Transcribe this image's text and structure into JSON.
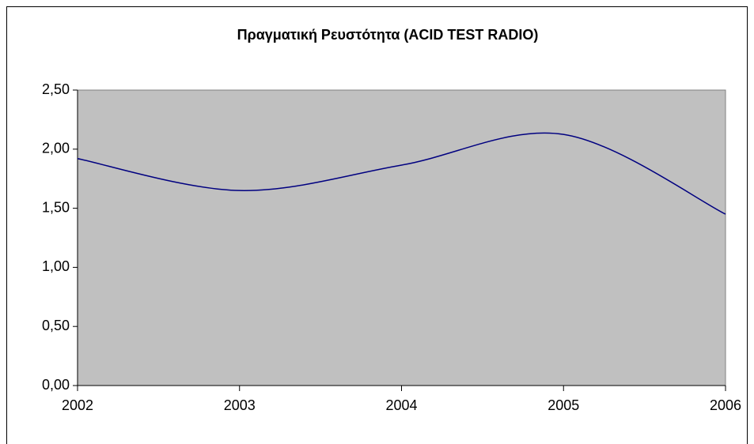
{
  "chart_data": {
    "type": "line",
    "title": "Πραγματική Ρευστότητα  (ACID TEST RADIO)",
    "x": [
      2002,
      2003,
      2004,
      2005,
      2006
    ],
    "series": [
      {
        "name": "ACID TEST RADIO",
        "color": "#000080",
        "values": [
          1.92,
          1.65,
          1.865,
          2.125,
          1.45
        ]
      }
    ],
    "smooth": true,
    "xlim": [
      2002,
      2006
    ],
    "xticks": [
      2002,
      2003,
      2004,
      2005,
      2006
    ],
    "ylim": [
      0,
      2.5
    ],
    "yticks": [
      {
        "value": 0,
        "label": "0,00"
      },
      {
        "value": 0.5,
        "label": "0,50"
      },
      {
        "value": 1,
        "label": "1,00"
      },
      {
        "value": 1.5,
        "label": "1,50"
      },
      {
        "value": 2,
        "label": "2,00"
      },
      {
        "value": 2.5,
        "label": "2,50"
      }
    ],
    "plot_background": "#c0c0c0"
  }
}
